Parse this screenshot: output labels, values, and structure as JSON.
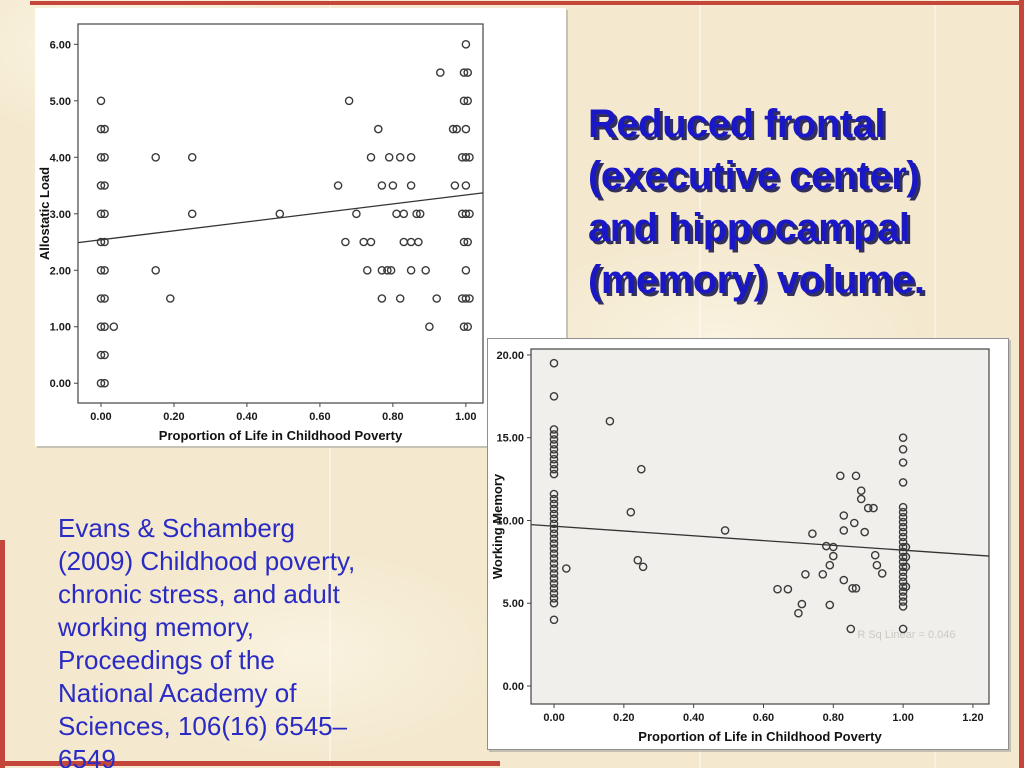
{
  "slide": {
    "title_lines": [
      "Reduced frontal",
      "(executive center)",
      "and hippocampal",
      "(memory) volume."
    ],
    "citation_lines": [
      "Evans & Schamberg",
      "(2009) Childhood poverty,",
      "chronic stress, and adult",
      "working memory,",
      "Proceedings of the",
      "National Academy of",
      "Sciences, 106(16)  6545–",
      "6549"
    ],
    "colors": {
      "background": "#f4e9cf",
      "border_red": "#c4463a",
      "title_blue": "#1a17c6",
      "citation_blue": "#2a2ac4",
      "point_stroke": "#3a3a3a"
    }
  },
  "chart_data": [
    {
      "type": "scatter",
      "title": "",
      "xlabel": "Proportion of Life in Childhood Poverty",
      "ylabel": "Allostatic Load",
      "xlim": [
        -0.063,
        1.047
      ],
      "ylim": [
        -0.35,
        6.36
      ],
      "x_ticks": [
        0,
        0.2,
        0.4,
        0.6,
        0.8,
        1.0
      ],
      "y_ticks": [
        0,
        1,
        2,
        3,
        4,
        5,
        6
      ],
      "grid": false,
      "legend": "none",
      "plot_bg": "#ffffff",
      "trend_line": {
        "x1": -0.063,
        "y1": 2.49,
        "x2": 1.047,
        "y2": 3.37
      },
      "points": [
        [
          0,
          5.0
        ],
        [
          0,
          4.5
        ],
        [
          0.01,
          4.5
        ],
        [
          0,
          4.0
        ],
        [
          0.01,
          4.0
        ],
        [
          0,
          3.5
        ],
        [
          0.01,
          3.5
        ],
        [
          0,
          3.0
        ],
        [
          0.01,
          3.0
        ],
        [
          0,
          2.5
        ],
        [
          0.01,
          2.5
        ],
        [
          0,
          2.0
        ],
        [
          0.01,
          2.0
        ],
        [
          0,
          1.5
        ],
        [
          0.01,
          1.5
        ],
        [
          0,
          1.0
        ],
        [
          0.01,
          1.0
        ],
        [
          0.035,
          1.0
        ],
        [
          0,
          0.5
        ],
        [
          0.01,
          0.5
        ],
        [
          0,
          0.0
        ],
        [
          0.01,
          0.0
        ],
        [
          0.15,
          4.0
        ],
        [
          0.25,
          4.0
        ],
        [
          0.25,
          3.0
        ],
        [
          0.15,
          2.0
        ],
        [
          0.19,
          1.5
        ],
        [
          0.49,
          3.0
        ],
        [
          0.68,
          5.0
        ],
        [
          1.0,
          6.0
        ],
        [
          0.93,
          5.5
        ],
        [
          0.995,
          5.5
        ],
        [
          1.005,
          5.5
        ],
        [
          0.995,
          5.0
        ],
        [
          1.005,
          5.0
        ],
        [
          0.76,
          4.5
        ],
        [
          0.965,
          4.5
        ],
        [
          0.975,
          4.5
        ],
        [
          1.0,
          4.5
        ],
        [
          0.74,
          4.0
        ],
        [
          0.79,
          4.0
        ],
        [
          0.82,
          4.0
        ],
        [
          0.85,
          4.0
        ],
        [
          0.99,
          4.0
        ],
        [
          1.0,
          4.0
        ],
        [
          1.01,
          4.0
        ],
        [
          0.65,
          3.5
        ],
        [
          0.77,
          3.5
        ],
        [
          0.8,
          3.5
        ],
        [
          0.85,
          3.5
        ],
        [
          0.97,
          3.5
        ],
        [
          1.0,
          3.5
        ],
        [
          0.7,
          3.0
        ],
        [
          0.81,
          3.0
        ],
        [
          0.83,
          3.0
        ],
        [
          0.865,
          3.0
        ],
        [
          0.875,
          3.0
        ],
        [
          0.99,
          3.0
        ],
        [
          1.0,
          3.0
        ],
        [
          1.01,
          3.0
        ],
        [
          0.67,
          2.5
        ],
        [
          0.72,
          2.5
        ],
        [
          0.74,
          2.5
        ],
        [
          0.83,
          2.5
        ],
        [
          0.85,
          2.5
        ],
        [
          0.87,
          2.5
        ],
        [
          0.995,
          2.5
        ],
        [
          1.005,
          2.5
        ],
        [
          0.73,
          2.0
        ],
        [
          0.77,
          2.0
        ],
        [
          0.785,
          2.0
        ],
        [
          0.795,
          2.0
        ],
        [
          0.85,
          2.0
        ],
        [
          0.89,
          2.0
        ],
        [
          1.0,
          2.0
        ],
        [
          0.77,
          1.5
        ],
        [
          0.82,
          1.5
        ],
        [
          0.92,
          1.5
        ],
        [
          0.99,
          1.5
        ],
        [
          1.0,
          1.5
        ],
        [
          1.01,
          1.5
        ],
        [
          0.9,
          1.0
        ],
        [
          0.995,
          1.0
        ],
        [
          1.005,
          1.0
        ]
      ]
    },
    {
      "type": "scatter",
      "title": "",
      "xlabel": "Proportion of Life in Childhood Poverty",
      "ylabel": "Working Memory",
      "xlim": [
        -0.066,
        1.246
      ],
      "ylim": [
        -1.088,
        20.36
      ],
      "x_ticks": [
        0,
        0.2,
        0.4,
        0.6,
        0.8,
        1.0,
        1.2
      ],
      "y_ticks": [
        0,
        5,
        10,
        15,
        20
      ],
      "grid": false,
      "legend": "none",
      "plot_bg": "#f0efec",
      "trend_line": {
        "x1": -0.066,
        "y1": 9.75,
        "x2": 1.246,
        "y2": 7.85
      },
      "annotation": {
        "text": "R Sq Linear = 0.046",
        "x": 1.15,
        "y": 2.9
      },
      "points": [
        [
          0,
          19.5
        ],
        [
          0,
          17.5
        ],
        [
          0,
          15.5
        ],
        [
          0,
          15.2
        ],
        [
          0,
          14.9
        ],
        [
          0,
          14.6
        ],
        [
          0,
          14.3
        ],
        [
          0,
          14.0
        ],
        [
          0,
          13.7
        ],
        [
          0,
          13.4
        ],
        [
          0,
          13.1
        ],
        [
          0,
          12.8
        ],
        [
          0,
          11.6
        ],
        [
          0,
          11.3
        ],
        [
          0,
          11.0
        ],
        [
          0,
          10.7
        ],
        [
          0,
          10.4
        ],
        [
          0,
          10.1
        ],
        [
          0,
          9.8
        ],
        [
          0,
          9.5
        ],
        [
          0,
          9.2
        ],
        [
          0,
          8.9
        ],
        [
          0,
          8.6
        ],
        [
          0,
          8.3
        ],
        [
          0,
          8.0
        ],
        [
          0,
          7.7
        ],
        [
          0,
          7.4
        ],
        [
          0,
          7.1
        ],
        [
          0,
          6.8
        ],
        [
          0,
          6.5
        ],
        [
          0,
          6.2
        ],
        [
          0,
          5.9
        ],
        [
          0,
          5.6
        ],
        [
          0,
          5.3
        ],
        [
          0,
          5.0
        ],
        [
          0,
          4.0
        ],
        [
          0.035,
          7.1
        ],
        [
          0.16,
          16.0
        ],
        [
          0.25,
          13.1
        ],
        [
          0.22,
          10.5
        ],
        [
          0.24,
          7.6
        ],
        [
          0.255,
          7.2
        ],
        [
          0.49,
          9.4
        ],
        [
          0.82,
          12.7
        ],
        [
          0.865,
          12.7
        ],
        [
          0.88,
          11.8
        ],
        [
          0.88,
          11.3
        ],
        [
          0.9,
          10.75
        ],
        [
          0.915,
          10.75
        ],
        [
          0.83,
          10.3
        ],
        [
          0.86,
          9.85
        ],
        [
          0.74,
          9.2
        ],
        [
          0.83,
          9.4
        ],
        [
          0.89,
          9.3
        ],
        [
          0.78,
          8.45
        ],
        [
          0.8,
          8.4
        ],
        [
          0.8,
          7.85
        ],
        [
          0.92,
          7.9
        ],
        [
          0.925,
          7.3
        ],
        [
          0.79,
          7.3
        ],
        [
          0.94,
          6.8
        ],
        [
          0.72,
          6.75
        ],
        [
          0.77,
          6.75
        ],
        [
          0.83,
          6.4
        ],
        [
          0.855,
          5.9
        ],
        [
          0.865,
          5.9
        ],
        [
          0.64,
          5.85
        ],
        [
          0.67,
          5.85
        ],
        [
          0.71,
          4.95
        ],
        [
          0.79,
          4.9
        ],
        [
          0.7,
          4.4
        ],
        [
          0.85,
          3.45
        ],
        [
          1.0,
          3.45
        ],
        [
          1.0,
          15.0
        ],
        [
          1.0,
          14.3
        ],
        [
          1.0,
          13.5
        ],
        [
          1.0,
          12.3
        ],
        [
          1.0,
          10.8
        ],
        [
          1.0,
          10.5
        ],
        [
          1.0,
          10.2
        ],
        [
          1.0,
          9.9
        ],
        [
          1.0,
          9.6
        ],
        [
          1.0,
          9.3
        ],
        [
          1.0,
          9.0
        ],
        [
          1.0,
          8.7
        ],
        [
          1.008,
          8.4
        ],
        [
          1.0,
          8.4
        ],
        [
          1.0,
          8.1
        ],
        [
          1.0,
          7.8
        ],
        [
          1.008,
          7.8
        ],
        [
          1.0,
          7.5
        ],
        [
          1.0,
          7.2
        ],
        [
          1.008,
          7.2
        ],
        [
          1.0,
          6.9
        ],
        [
          1.0,
          6.6
        ],
        [
          1.0,
          6.3
        ],
        [
          1.0,
          6.0
        ],
        [
          1.008,
          6.0
        ],
        [
          1.0,
          5.7
        ],
        [
          1.0,
          5.4
        ],
        [
          1.0,
          5.1
        ],
        [
          1.0,
          4.8
        ]
      ]
    }
  ]
}
